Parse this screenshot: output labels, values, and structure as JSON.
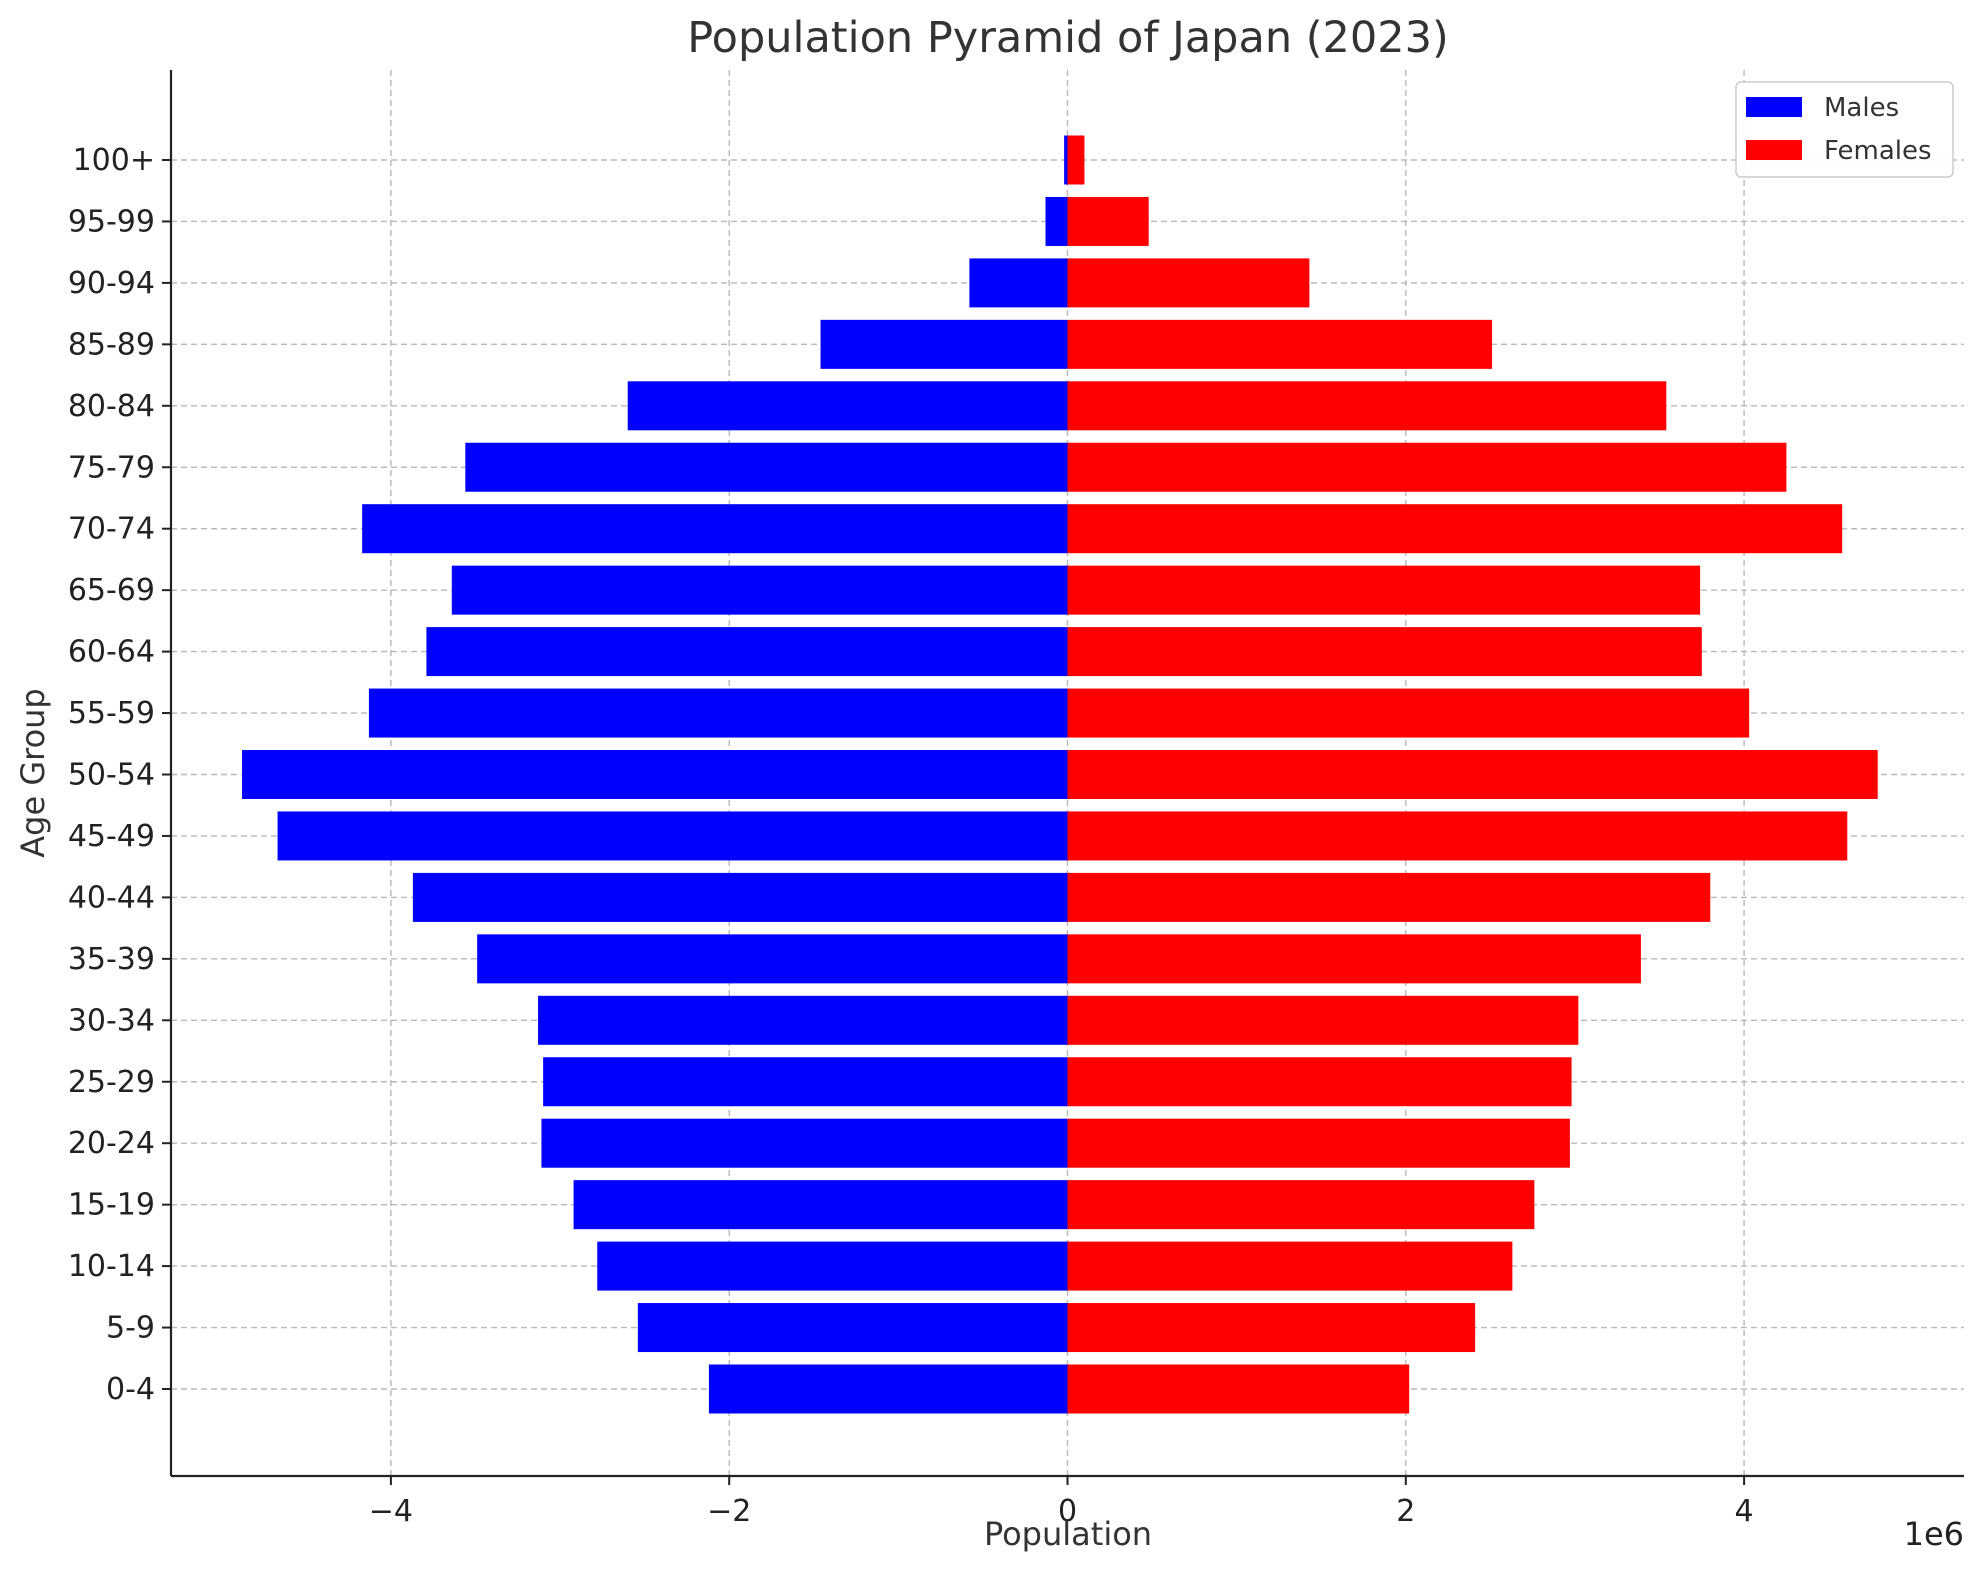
{
  "chart_data": {
    "type": "bar",
    "orientation": "horizontal",
    "title": "Population Pyramid of Japan (2023)",
    "xlabel": "Population",
    "ylabel": "Age Group",
    "x_offset_label": "1e6",
    "x_scale": 1000000,
    "xlim": [
      -5300000,
      5300000
    ],
    "x_ticks": [
      -4000000,
      -2000000,
      0,
      2000000,
      4000000
    ],
    "x_tick_labels": [
      "−4",
      "−2",
      "0",
      "2",
      "4"
    ],
    "grid": true,
    "legend_position": "top-right",
    "categories": [
      "0-4",
      "5-9",
      "10-14",
      "15-19",
      "20-24",
      "25-29",
      "30-34",
      "35-39",
      "40-44",
      "45-49",
      "50-54",
      "55-59",
      "60-64",
      "65-69",
      "70-74",
      "75-79",
      "80-84",
      "85-89",
      "90-94",
      "95-99",
      "100+"
    ],
    "series": [
      {
        "name": "Males",
        "color": "#0000ff",
        "values": [
          -2120000,
          -2540000,
          -2780000,
          -2920000,
          -3110000,
          -3100000,
          -3130000,
          -3490000,
          -3870000,
          -4670000,
          -4880000,
          -4130000,
          -3790000,
          -3640000,
          -4170000,
          -3560000,
          -2600000,
          -1460000,
          -580000,
          -130000,
          -20000
        ]
      },
      {
        "name": "Females",
        "color": "#ff0000",
        "values": [
          2020000,
          2410000,
          2630000,
          2760000,
          2970000,
          2980000,
          3020000,
          3390000,
          3800000,
          4610000,
          4790000,
          4030000,
          3750000,
          3740000,
          4580000,
          4250000,
          3540000,
          2510000,
          1430000,
          480000,
          100000
        ]
      }
    ]
  }
}
